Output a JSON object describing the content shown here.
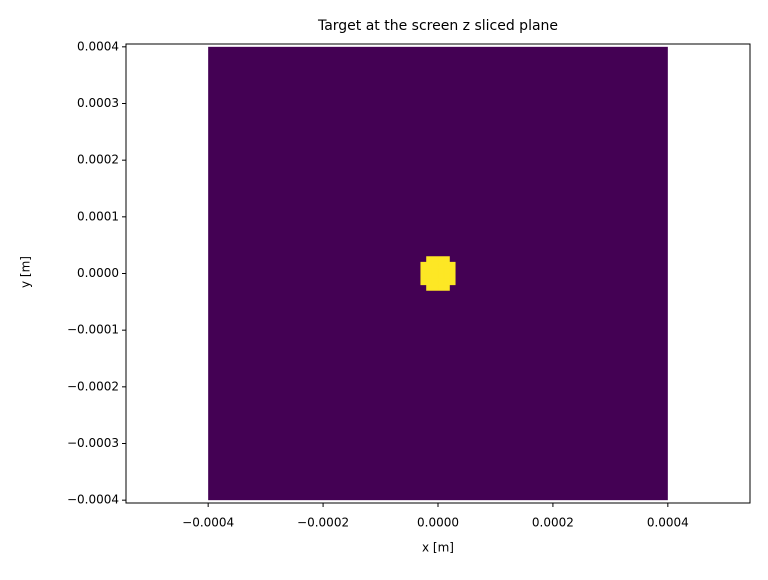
{
  "chart_data": {
    "type": "image",
    "title": "Target at the screen z sliced plane",
    "x_label": "x [m]",
    "y_label": "y [m]",
    "xlim": [
      -0.000543,
      0.000543
    ],
    "ylim": [
      -0.000405,
      0.000405
    ],
    "xticks": [
      {
        "value": -0.0004,
        "label": "−0.0004"
      },
      {
        "value": -0.0002,
        "label": "−0.0002"
      },
      {
        "value": 0,
        "label": "0.0000"
      },
      0.0002,
      0.0004
    ],
    "yticks": [
      {
        "value": -0.0004,
        "label": "−0.0004"
      },
      {
        "value": -0.0003,
        "label": "−0.0003"
      },
      {
        "value": -0.0002,
        "label": "−0.0002"
      },
      {
        "value": -0.0001,
        "label": "−0.0001"
      },
      {
        "value": 0,
        "label": "0.0000"
      },
      0.0001,
      0.0002,
      0.0003,
      0.0004
    ],
    "image": {
      "extent": [
        -0.0004,
        0.0004,
        -0.0004,
        0.0004
      ],
      "grid_size": 80,
      "background": 0,
      "target_value": 1,
      "target_center": [
        0,
        0
      ],
      "target_radius": 3e-05
    },
    "colors": [
      "#440154",
      "#fde725"
    ]
  }
}
